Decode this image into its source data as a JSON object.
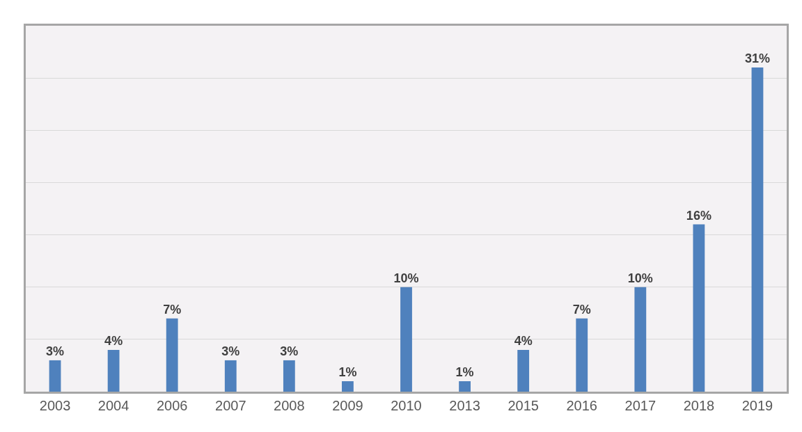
{
  "chart_data": {
    "type": "bar",
    "categories": [
      "2003",
      "2004",
      "2006",
      "2007",
      "2008",
      "2009",
      "2010",
      "2013",
      "2015",
      "2016",
      "2017",
      "2018",
      "2019"
    ],
    "values": [
      3,
      4,
      7,
      3,
      3,
      1,
      10,
      1,
      4,
      7,
      10,
      16,
      31
    ],
    "value_labels": [
      "3%",
      "4%",
      "7%",
      "3%",
      "3%",
      "1%",
      "10%",
      "1%",
      "4%",
      "7%",
      "10%",
      "16%",
      "31%"
    ],
    "color": "#4f81bd",
    "ylim": [
      0,
      35
    ],
    "yticks": [
      {
        "value": 0,
        "label": null
      },
      {
        "value": 5,
        "label": null
      },
      {
        "value": 10,
        "label": null
      },
      {
        "value": 15,
        "label": null
      },
      {
        "value": 20,
        "label": null
      },
      {
        "value": 25,
        "label": null
      },
      {
        "value": 30,
        "label": null
      }
    ],
    "tick_labels": "x",
    "grid": "y",
    "legend": false
  }
}
